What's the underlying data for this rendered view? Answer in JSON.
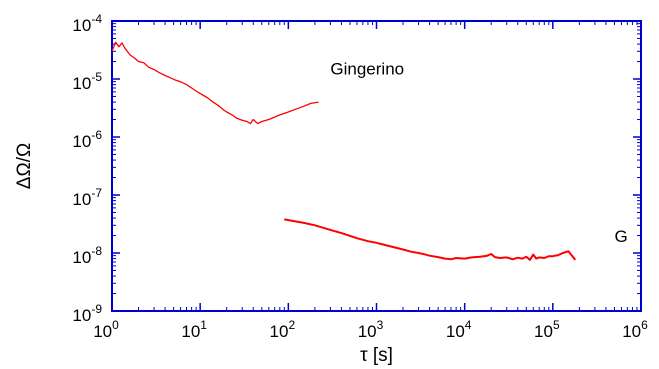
{
  "chart_data": {
    "type": "line",
    "title": "",
    "xlabel": "τ [s]",
    "ylabel": "ΔΩ/Ω",
    "x_scale": "log",
    "y_scale": "log",
    "xlim": [
      1,
      1000000
    ],
    "ylim": [
      1e-09,
      0.0001
    ],
    "grid": false,
    "frame_color": "#0000cc",
    "x_ticks": [
      {
        "value": 1,
        "base": "10",
        "exp": "0"
      },
      {
        "value": 10,
        "base": "10",
        "exp": "1"
      },
      {
        "value": 100,
        "base": "10",
        "exp": "2"
      },
      {
        "value": 1000,
        "base": "10",
        "exp": "3"
      },
      {
        "value": 10000,
        "base": "10",
        "exp": "4"
      },
      {
        "value": 100000,
        "base": "10",
        "exp": "5"
      },
      {
        "value": 1000000,
        "base": "10",
        "exp": "6"
      }
    ],
    "y_ticks": [
      {
        "value": 1e-09,
        "base": "10",
        "exp": "-9"
      },
      {
        "value": 1e-08,
        "base": "10",
        "exp": "-8"
      },
      {
        "value": 1e-07,
        "base": "10",
        "exp": "-7"
      },
      {
        "value": 1e-06,
        "base": "10",
        "exp": "-6"
      },
      {
        "value": 1e-05,
        "base": "10",
        "exp": "-5"
      },
      {
        "value": 0.0001,
        "base": "10",
        "exp": "-4"
      }
    ],
    "series": [
      {
        "name": "Gingerino",
        "color": "#ff0000",
        "label_at": [
          300,
          1.2e-05
        ],
        "points": [
          [
            1.0,
            3e-05
          ],
          [
            1.1,
            4.3e-05
          ],
          [
            1.2,
            3.6e-05
          ],
          [
            1.3,
            4.2e-05
          ],
          [
            1.4,
            3.4e-05
          ],
          [
            1.6,
            2.6e-05
          ],
          [
            1.8,
            2.3e-05
          ],
          [
            2.0,
            2e-05
          ],
          [
            2.3,
            1.9e-05
          ],
          [
            2.6,
            1.6e-05
          ],
          [
            3.0,
            1.45e-05
          ],
          [
            3.4,
            1.3e-05
          ],
          [
            4.0,
            1.15e-05
          ],
          [
            4.6,
            1.05e-05
          ],
          [
            5.3,
            9.5e-06
          ],
          [
            6.0,
            9e-06
          ],
          [
            7.0,
            8e-06
          ],
          [
            8.0,
            7e-06
          ],
          [
            9.0,
            6.2e-06
          ],
          [
            10,
            5.6e-06
          ],
          [
            12,
            4.8e-06
          ],
          [
            14,
            4e-06
          ],
          [
            16,
            3.5e-06
          ],
          [
            18,
            3e-06
          ],
          [
            20,
            2.7e-06
          ],
          [
            23,
            2.4e-06
          ],
          [
            26,
            2.1e-06
          ],
          [
            30,
            1.95e-06
          ],
          [
            34,
            1.85e-06
          ],
          [
            37,
            1.7e-06
          ],
          [
            40,
            2e-06
          ],
          [
            45,
            1.7e-06
          ],
          [
            50,
            1.85e-06
          ],
          [
            60,
            2e-06
          ],
          [
            70,
            2.2e-06
          ],
          [
            80,
            2.4e-06
          ],
          [
            100,
            2.7e-06
          ],
          [
            120,
            3e-06
          ],
          [
            150,
            3.4e-06
          ],
          [
            180,
            3.8e-06
          ],
          [
            220,
            4e-06
          ]
        ]
      },
      {
        "name": "G",
        "color": "#ff0000",
        "label_at": [
          500000,
          1.55e-08
        ],
        "points": [
          [
            90,
            3.8e-08
          ],
          [
            120,
            3.5e-08
          ],
          [
            150,
            3.3e-08
          ],
          [
            200,
            3e-08
          ],
          [
            300,
            2.5e-08
          ],
          [
            400,
            2.2e-08
          ],
          [
            600,
            1.8e-08
          ],
          [
            800,
            1.6e-08
          ],
          [
            1000,
            1.5e-08
          ],
          [
            1300,
            1.35e-08
          ],
          [
            1600,
            1.25e-08
          ],
          [
            2000,
            1.15e-08
          ],
          [
            2500,
            1.05e-08
          ],
          [
            3000,
            1e-08
          ],
          [
            3500,
            9.5e-09
          ],
          [
            4000,
            9e-09
          ],
          [
            5000,
            8.5e-09
          ],
          [
            6000,
            8e-09
          ],
          [
            7000,
            7.8e-09
          ],
          [
            8000,
            8.2e-09
          ],
          [
            10000,
            8e-09
          ],
          [
            12000,
            8.4e-09
          ],
          [
            15000,
            8.6e-09
          ],
          [
            18000,
            9e-09
          ],
          [
            20000,
            9.6e-09
          ],
          [
            22000,
            8.5e-09
          ],
          [
            25000,
            8.2e-09
          ],
          [
            30000,
            8.4e-09
          ],
          [
            35000,
            7.8e-09
          ],
          [
            40000,
            8.3e-09
          ],
          [
            45000,
            8e-09
          ],
          [
            50000,
            8.6e-09
          ],
          [
            55000,
            7.6e-09
          ],
          [
            60000,
            9.4e-09
          ],
          [
            65000,
            8e-09
          ],
          [
            70000,
            8.4e-09
          ],
          [
            80000,
            8.2e-09
          ],
          [
            90000,
            8.8e-09
          ],
          [
            100000,
            8.8e-09
          ],
          [
            115000,
            9.2e-09
          ],
          [
            130000,
            1e-08
          ],
          [
            150000,
            1.07e-08
          ],
          [
            165000,
            9e-09
          ],
          [
            180000,
            7.6e-09
          ]
        ]
      }
    ]
  }
}
